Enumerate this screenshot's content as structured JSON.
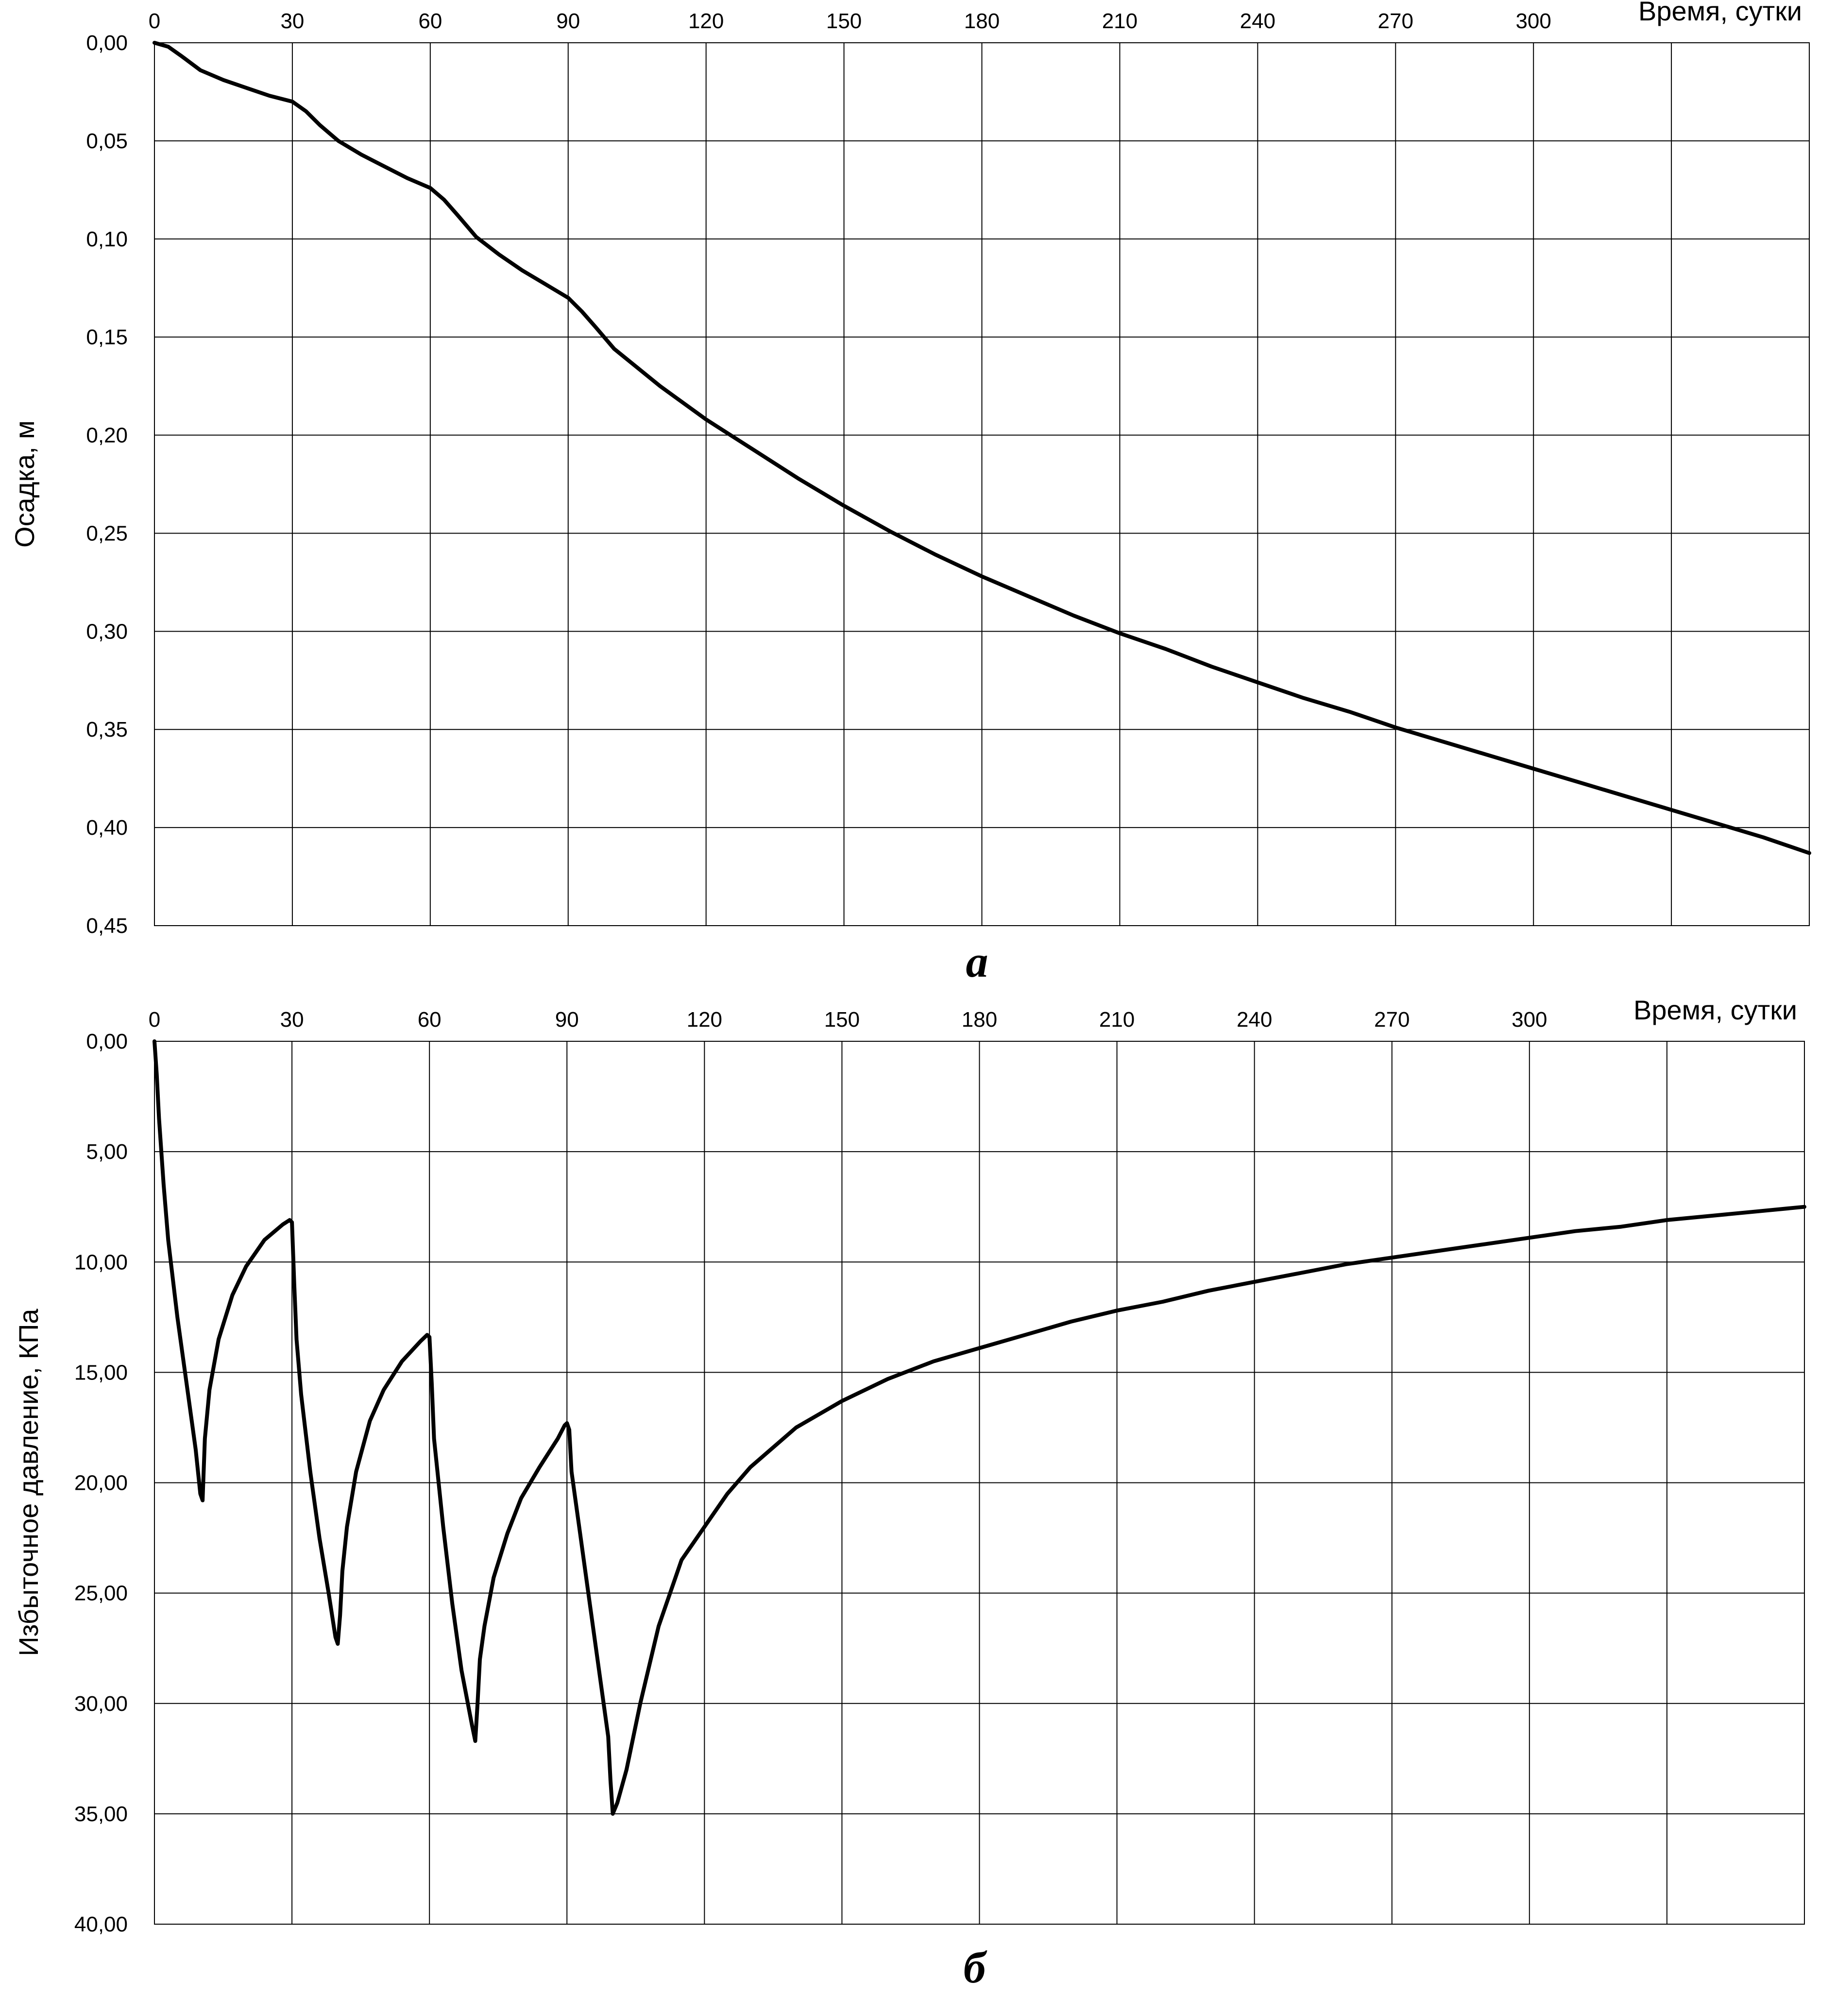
{
  "chart_data": [
    {
      "type": "line",
      "title": "",
      "xlabel": "Время, сутки",
      "ylabel": "Осадка, м",
      "panel_label": "а",
      "x_ticks": [
        "0",
        "30",
        "60",
        "90",
        "120",
        "150",
        "180",
        "210",
        "240",
        "270",
        "300"
      ],
      "y_ticks": [
        "0,00",
        "0,05",
        "0,10",
        "0,15",
        "0,20",
        "0,25",
        "0,30",
        "0,35",
        "0,40",
        "0,45"
      ],
      "xlim": [
        0,
        360
      ],
      "ylim": [
        0,
        0.45
      ],
      "y_inverted": true,
      "x_axis_position": "top",
      "grid": true,
      "series": [
        {
          "x": [
            0,
            3,
            6,
            10,
            15,
            20,
            25,
            30,
            33,
            36,
            40,
            45,
            50,
            55,
            60,
            63,
            66,
            70,
            75,
            80,
            85,
            90,
            93,
            96,
            100,
            110,
            120,
            130,
            140,
            150,
            160,
            170,
            180,
            190,
            200,
            210,
            220,
            230,
            240,
            250,
            260,
            270,
            280,
            290,
            300,
            310,
            320,
            330,
            340,
            350,
            360
          ],
          "y": [
            0.0,
            0.002,
            0.007,
            0.014,
            0.019,
            0.023,
            0.027,
            0.03,
            0.035,
            0.042,
            0.05,
            0.057,
            0.063,
            0.069,
            0.074,
            0.08,
            0.088,
            0.099,
            0.108,
            0.116,
            0.123,
            0.13,
            0.137,
            0.145,
            0.156,
            0.175,
            0.192,
            0.207,
            0.222,
            0.236,
            0.249,
            0.261,
            0.272,
            0.282,
            0.292,
            0.301,
            0.309,
            0.318,
            0.326,
            0.334,
            0.341,
            0.349,
            0.356,
            0.363,
            0.37,
            0.377,
            0.384,
            0.391,
            0.398,
            0.405,
            0.413
          ]
        }
      ]
    },
    {
      "type": "line",
      "title": "",
      "xlabel": "Время, сутки",
      "ylabel": "Избыточное давление, КПа",
      "panel_label": "б",
      "x_ticks": [
        "0",
        "30",
        "60",
        "90",
        "120",
        "150",
        "180",
        "210",
        "240",
        "270",
        "300"
      ],
      "y_ticks": [
        "0,00",
        "5,00",
        "10,00",
        "15,00",
        "20,00",
        "25,00",
        "30,00",
        "35,00",
        "40,00"
      ],
      "xlim": [
        0,
        360
      ],
      "ylim": [
        0,
        40
      ],
      "y_inverted": true,
      "x_axis_position": "top",
      "grid": true,
      "series": [
        {
          "x": [
            0,
            0.5,
            1,
            2,
            3,
            5,
            7,
            9,
            10,
            10.5,
            11,
            12,
            14,
            17,
            20,
            24,
            28,
            29.5,
            30,
            30.5,
            31,
            32,
            34,
            36,
            38,
            39.5,
            40,
            40.5,
            41,
            42,
            44,
            47,
            50,
            54,
            58,
            59.5,
            60,
            60.5,
            61,
            63,
            65,
            67,
            69.3,
            70,
            70.5,
            71,
            72,
            74,
            77,
            80,
            84,
            88,
            89.5,
            90,
            90.5,
            91,
            93,
            95,
            97,
            99,
            99.5,
            100,
            101,
            103,
            106,
            110,
            115,
            120,
            125,
            130,
            140,
            150,
            160,
            170,
            180,
            190,
            200,
            210,
            220,
            230,
            240,
            250,
            260,
            270,
            280,
            290,
            300,
            310,
            320,
            330,
            340,
            350,
            360
          ],
          "y": [
            0.0,
            1.5,
            3.5,
            6.5,
            9.0,
            12.5,
            15.5,
            18.5,
            20.5,
            20.8,
            18.0,
            15.8,
            13.5,
            11.5,
            10.2,
            9.0,
            8.3,
            8.1,
            8.2,
            11.0,
            13.5,
            16.0,
            19.5,
            22.5,
            25.0,
            27.0,
            27.3,
            26.0,
            24.0,
            22.0,
            19.5,
            17.2,
            15.8,
            14.5,
            13.6,
            13.3,
            13.4,
            15.5,
            18.0,
            22.0,
            25.5,
            28.5,
            31.0,
            31.7,
            30.0,
            28.0,
            26.5,
            24.3,
            22.3,
            20.7,
            19.3,
            18.0,
            17.4,
            17.3,
            17.6,
            19.5,
            22.5,
            25.5,
            28.5,
            31.5,
            33.5,
            35.0,
            34.5,
            33.0,
            30.0,
            26.5,
            23.5,
            22.0,
            20.5,
            19.3,
            17.5,
            16.3,
            15.3,
            14.5,
            13.9,
            13.3,
            12.7,
            12.2,
            11.8,
            11.3,
            10.9,
            10.5,
            10.1,
            9.8,
            9.5,
            9.2,
            8.9,
            8.6,
            8.4,
            8.1,
            7.9,
            7.7,
            7.5
          ]
        }
      ]
    }
  ]
}
